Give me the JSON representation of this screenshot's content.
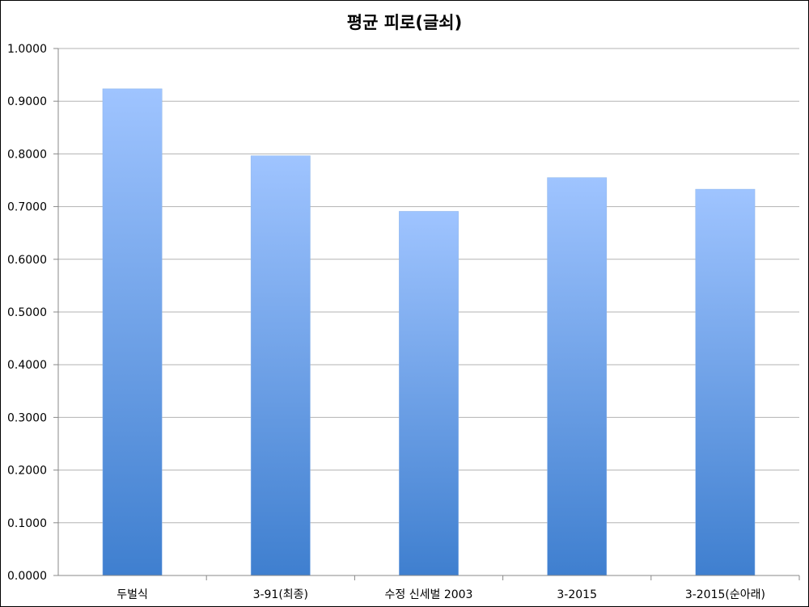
{
  "chart_data": {
    "type": "bar",
    "title": "평균 피로(글쇠)",
    "xlabel": "",
    "ylabel": "",
    "categories": [
      "두벌식",
      "3-91(최종)",
      "수정 신세벌 2003",
      "3-2015",
      "3-2015(순아래)"
    ],
    "values": [
      0.9235,
      0.7965,
      0.691,
      0.755,
      0.733
    ],
    "ylim": [
      0,
      1
    ],
    "yticks": [
      "0.0000",
      "0.1000",
      "0.2000",
      "0.3000",
      "0.4000",
      "0.5000",
      "0.6000",
      "0.7000",
      "0.8000",
      "0.9000",
      "1.0000"
    ],
    "grid": true,
    "legend": "none",
    "bar_color_top": "#9fc4ff",
    "bar_color_bottom": "#3f7fcf",
    "grid_color": "#b3b3b3"
  }
}
